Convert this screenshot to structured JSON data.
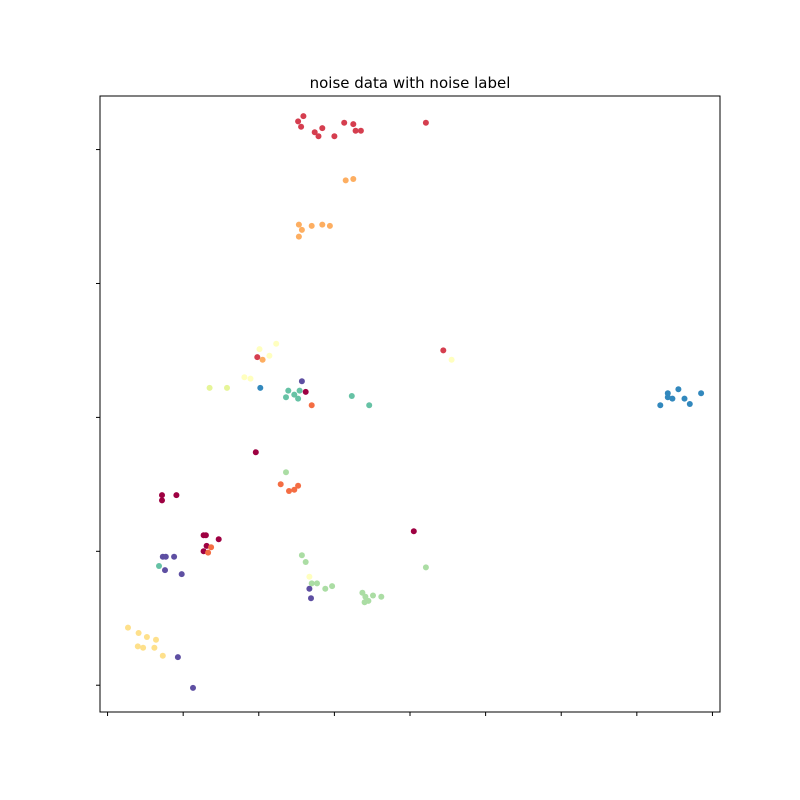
{
  "chart_data": {
    "type": "scatter",
    "title": "noise data with noise label",
    "xlabel": "",
    "ylabel": "",
    "xlim": [
      -0.1,
      8.1
    ],
    "ylim": [
      -0.2,
      4.4
    ],
    "xticks": [
      0,
      1,
      2,
      3,
      4,
      5,
      6,
      7,
      8
    ],
    "yticks": [
      0,
      1,
      2,
      3,
      4
    ],
    "tick_labels_visible": false,
    "grid": false,
    "legend": "none",
    "colors": {
      "red": "#d53e4f",
      "orange": "#fdae61",
      "yellow": "#fee08b",
      "light_yellow": "#ffffbf",
      "light_green": "#e6f598",
      "green": "#abdda4",
      "teal": "#66c2a5",
      "blue": "#3288bd",
      "purple": "#5e4fa2",
      "dark_red": "#9e0142",
      "dark_orange": "#f46d43"
    },
    "points": [
      {
        "x": 2.52,
        "y": 4.21,
        "c": "#d53e4f"
      },
      {
        "x": 2.59,
        "y": 4.25,
        "c": "#d53e4f"
      },
      {
        "x": 2.56,
        "y": 4.17,
        "c": "#d53e4f"
      },
      {
        "x": 2.74,
        "y": 4.13,
        "c": "#d53e4f"
      },
      {
        "x": 2.84,
        "y": 4.16,
        "c": "#d53e4f"
      },
      {
        "x": 2.79,
        "y": 4.1,
        "c": "#d53e4f"
      },
      {
        "x": 3.0,
        "y": 4.1,
        "c": "#d53e4f"
      },
      {
        "x": 3.13,
        "y": 4.2,
        "c": "#d53e4f"
      },
      {
        "x": 3.25,
        "y": 4.19,
        "c": "#d53e4f"
      },
      {
        "x": 3.28,
        "y": 4.14,
        "c": "#d53e4f"
      },
      {
        "x": 3.35,
        "y": 4.14,
        "c": "#d53e4f"
      },
      {
        "x": 4.21,
        "y": 4.2,
        "c": "#d53e4f"
      },
      {
        "x": 3.15,
        "y": 3.77,
        "c": "#fdae61"
      },
      {
        "x": 3.25,
        "y": 3.78,
        "c": "#fdae61"
      },
      {
        "x": 2.53,
        "y": 3.44,
        "c": "#fdae61"
      },
      {
        "x": 2.57,
        "y": 3.4,
        "c": "#fdae61"
      },
      {
        "x": 2.53,
        "y": 3.35,
        "c": "#fdae61"
      },
      {
        "x": 2.7,
        "y": 3.43,
        "c": "#fdae61"
      },
      {
        "x": 2.84,
        "y": 3.44,
        "c": "#fdae61"
      },
      {
        "x": 2.94,
        "y": 3.43,
        "c": "#fdae61"
      },
      {
        "x": 4.44,
        "y": 2.5,
        "c": "#d53e4f"
      },
      {
        "x": 4.55,
        "y": 2.43,
        "c": "#ffffbf"
      },
      {
        "x": 2.23,
        "y": 2.55,
        "c": "#ffffbf"
      },
      {
        "x": 2.01,
        "y": 2.51,
        "c": "#ffffbf"
      },
      {
        "x": 2.14,
        "y": 2.46,
        "c": "#ffffbf"
      },
      {
        "x": 1.98,
        "y": 2.45,
        "c": "#d53e4f"
      },
      {
        "x": 2.05,
        "y": 2.43,
        "c": "#fdae61"
      },
      {
        "x": 1.81,
        "y": 2.3,
        "c": "#ffffbf"
      },
      {
        "x": 1.89,
        "y": 2.29,
        "c": "#ffffbf"
      },
      {
        "x": 1.35,
        "y": 2.22,
        "c": "#e6f598"
      },
      {
        "x": 1.58,
        "y": 2.22,
        "c": "#e6f598"
      },
      {
        "x": 2.02,
        "y": 2.22,
        "c": "#3288bd"
      },
      {
        "x": 2.57,
        "y": 2.27,
        "c": "#5e4fa2"
      },
      {
        "x": 2.39,
        "y": 2.2,
        "c": "#66c2a5"
      },
      {
        "x": 2.47,
        "y": 2.17,
        "c": "#66c2a5"
      },
      {
        "x": 2.36,
        "y": 2.15,
        "c": "#66c2a5"
      },
      {
        "x": 2.52,
        "y": 2.14,
        "c": "#66c2a5"
      },
      {
        "x": 2.54,
        "y": 2.2,
        "c": "#66c2a5"
      },
      {
        "x": 2.62,
        "y": 2.19,
        "c": "#9e0142"
      },
      {
        "x": 2.7,
        "y": 2.09,
        "c": "#f46d43"
      },
      {
        "x": 3.23,
        "y": 2.16,
        "c": "#66c2a5"
      },
      {
        "x": 3.46,
        "y": 2.09,
        "c": "#66c2a5"
      },
      {
        "x": 7.55,
        "y": 2.21,
        "c": "#3288bd"
      },
      {
        "x": 7.41,
        "y": 2.18,
        "c": "#3288bd"
      },
      {
        "x": 7.41,
        "y": 2.15,
        "c": "#3288bd"
      },
      {
        "x": 7.47,
        "y": 2.14,
        "c": "#3288bd"
      },
      {
        "x": 7.63,
        "y": 2.14,
        "c": "#3288bd"
      },
      {
        "x": 7.7,
        "y": 2.1,
        "c": "#3288bd"
      },
      {
        "x": 7.31,
        "y": 2.09,
        "c": "#3288bd"
      },
      {
        "x": 7.85,
        "y": 2.18,
        "c": "#3288bd"
      },
      {
        "x": 1.96,
        "y": 1.74,
        "c": "#9e0142"
      },
      {
        "x": 2.36,
        "y": 1.59,
        "c": "#abdda4"
      },
      {
        "x": 2.29,
        "y": 1.5,
        "c": "#f46d43"
      },
      {
        "x": 2.52,
        "y": 1.49,
        "c": "#f46d43"
      },
      {
        "x": 2.4,
        "y": 1.45,
        "c": "#f46d43"
      },
      {
        "x": 2.47,
        "y": 1.46,
        "c": "#f46d43"
      },
      {
        "x": 0.72,
        "y": 1.42,
        "c": "#9e0142"
      },
      {
        "x": 0.72,
        "y": 1.38,
        "c": "#9e0142"
      },
      {
        "x": 0.91,
        "y": 1.42,
        "c": "#9e0142"
      },
      {
        "x": 1.27,
        "y": 1.12,
        "c": "#9e0142"
      },
      {
        "x": 1.3,
        "y": 1.12,
        "c": "#9e0142"
      },
      {
        "x": 1.47,
        "y": 1.09,
        "c": "#9e0142"
      },
      {
        "x": 1.31,
        "y": 1.04,
        "c": "#9e0142"
      },
      {
        "x": 1.37,
        "y": 1.03,
        "c": "#f46d43"
      },
      {
        "x": 1.27,
        "y": 1.0,
        "c": "#9e0142"
      },
      {
        "x": 1.33,
        "y": 0.99,
        "c": "#f46d43"
      },
      {
        "x": 4.05,
        "y": 1.15,
        "c": "#9e0142"
      },
      {
        "x": 0.73,
        "y": 0.96,
        "c": "#5e4fa2"
      },
      {
        "x": 0.77,
        "y": 0.96,
        "c": "#5e4fa2"
      },
      {
        "x": 0.88,
        "y": 0.96,
        "c": "#5e4fa2"
      },
      {
        "x": 0.68,
        "y": 0.89,
        "c": "#66c2a5"
      },
      {
        "x": 0.76,
        "y": 0.86,
        "c": "#5e4fa2"
      },
      {
        "x": 0.98,
        "y": 0.83,
        "c": "#5e4fa2"
      },
      {
        "x": 2.57,
        "y": 0.97,
        "c": "#abdda4"
      },
      {
        "x": 2.62,
        "y": 0.92,
        "c": "#abdda4"
      },
      {
        "x": 2.67,
        "y": 0.81,
        "c": "#ffffbf"
      },
      {
        "x": 2.7,
        "y": 0.76,
        "c": "#abdda4"
      },
      {
        "x": 2.77,
        "y": 0.76,
        "c": "#abdda4"
      },
      {
        "x": 2.88,
        "y": 0.72,
        "c": "#abdda4"
      },
      {
        "x": 2.97,
        "y": 0.74,
        "c": "#abdda4"
      },
      {
        "x": 2.67,
        "y": 0.72,
        "c": "#5e4fa2"
      },
      {
        "x": 2.69,
        "y": 0.65,
        "c": "#5e4fa2"
      },
      {
        "x": 3.37,
        "y": 0.69,
        "c": "#abdda4"
      },
      {
        "x": 3.41,
        "y": 0.66,
        "c": "#abdda4"
      },
      {
        "x": 3.45,
        "y": 0.63,
        "c": "#abdda4"
      },
      {
        "x": 3.51,
        "y": 0.67,
        "c": "#abdda4"
      },
      {
        "x": 3.62,
        "y": 0.66,
        "c": "#abdda4"
      },
      {
        "x": 3.4,
        "y": 0.62,
        "c": "#abdda4"
      },
      {
        "x": 4.21,
        "y": 0.88,
        "c": "#abdda4"
      },
      {
        "x": 0.27,
        "y": 0.43,
        "c": "#fee08b"
      },
      {
        "x": 0.41,
        "y": 0.39,
        "c": "#fee08b"
      },
      {
        "x": 0.52,
        "y": 0.36,
        "c": "#fee08b"
      },
      {
        "x": 0.64,
        "y": 0.34,
        "c": "#fee08b"
      },
      {
        "x": 0.4,
        "y": 0.29,
        "c": "#fee08b"
      },
      {
        "x": 0.47,
        "y": 0.28,
        "c": "#fee08b"
      },
      {
        "x": 0.62,
        "y": 0.28,
        "c": "#fee08b"
      },
      {
        "x": 0.73,
        "y": 0.22,
        "c": "#fee08b"
      },
      {
        "x": 0.93,
        "y": 0.21,
        "c": "#5e4fa2"
      },
      {
        "x": 1.13,
        "y": -0.02,
        "c": "#5e4fa2"
      }
    ]
  }
}
